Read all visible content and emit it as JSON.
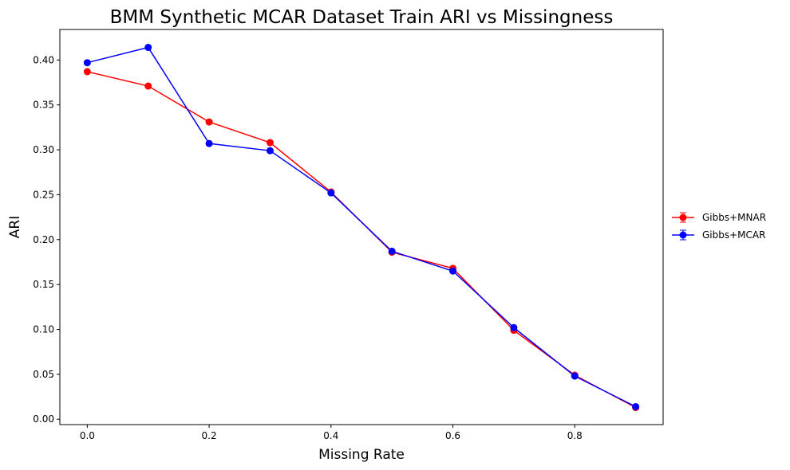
{
  "chart_data": {
    "type": "line",
    "title": "BMM Synthetic MCAR Dataset Train ARI vs Missingness",
    "xlabel": "Missing Rate",
    "ylabel": "ARI",
    "xlim": [
      -0.045,
      0.945
    ],
    "ylim": [
      -0.006,
      0.434
    ],
    "xticks": [
      0.0,
      0.2,
      0.4,
      0.6,
      0.8
    ],
    "xtick_labels": [
      "0.0",
      "0.2",
      "0.4",
      "0.6",
      "0.8"
    ],
    "yticks": [
      0.0,
      0.05,
      0.1,
      0.15,
      0.2,
      0.25,
      0.3,
      0.35,
      0.4
    ],
    "ytick_labels": [
      "0.00",
      "0.05",
      "0.10",
      "0.15",
      "0.20",
      "0.25",
      "0.30",
      "0.35",
      "0.40"
    ],
    "grid": false,
    "legend_position": "right-outside",
    "x": [
      0.0,
      0.1,
      0.2,
      0.3,
      0.4,
      0.5,
      0.6,
      0.7,
      0.8,
      0.9
    ],
    "series": [
      {
        "name": "Gibbs+MNAR",
        "color": "#ff0000",
        "values": [
          0.387,
          0.371,
          0.331,
          0.308,
          0.253,
          0.186,
          0.168,
          0.099,
          0.049,
          0.013
        ],
        "errors": [
          0.001,
          0.001,
          0.001,
          0.001,
          0.001,
          0.001,
          0.001,
          0.001,
          0.001,
          0.001
        ]
      },
      {
        "name": "Gibbs+MCAR",
        "color": "#0000ff",
        "values": [
          0.397,
          0.414,
          0.307,
          0.299,
          0.252,
          0.187,
          0.165,
          0.102,
          0.048,
          0.014
        ],
        "errors": [
          0.001,
          0.001,
          0.001,
          0.001,
          0.001,
          0.001,
          0.001,
          0.001,
          0.001,
          0.001
        ]
      }
    ]
  }
}
